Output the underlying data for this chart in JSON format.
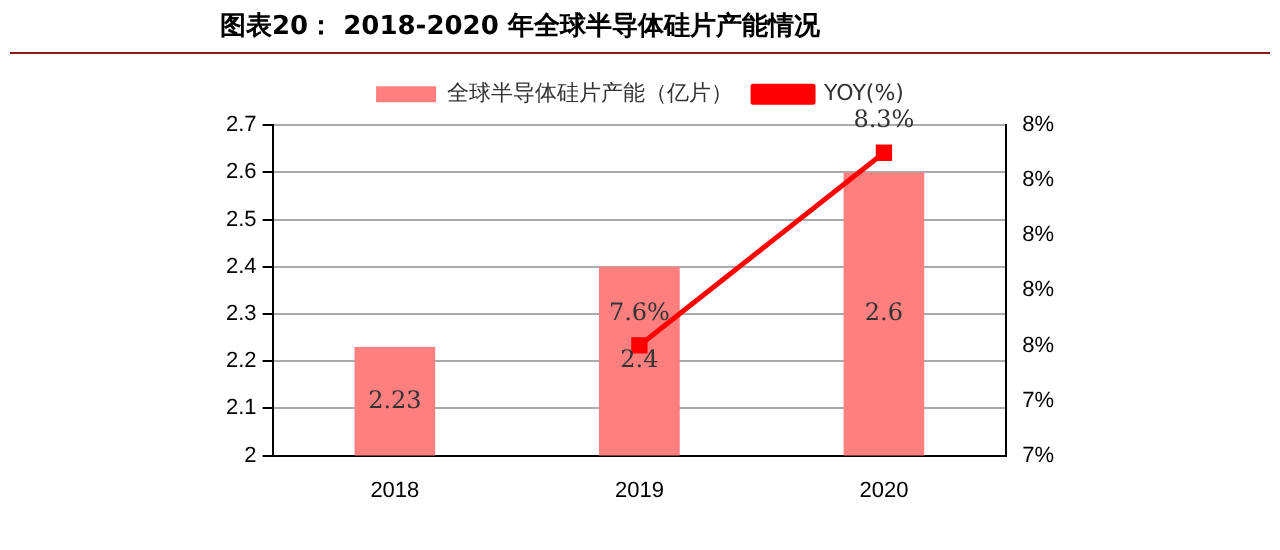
{
  "chart_data": {
    "type": "bar",
    "title": "图表20： 2018-2020 年全球半导体硅片产能情况",
    "categories": [
      "2018",
      "2019",
      "2020"
    ],
    "series": [
      {
        "name": "全球半导体硅片产能（亿片）",
        "color": "#ff7f7f",
        "values": [
          2.23,
          2.4,
          2.6
        ],
        "value_labels": [
          "2.23",
          "2.4",
          "2.6"
        ]
      },
      {
        "name": "YOY(%)",
        "type": "line",
        "axis": "y2",
        "color": "#ff0000",
        "values": [
          null,
          7.6,
          8.3
        ],
        "value_labels": [
          null,
          "7.6%",
          "8.3%"
        ],
        "marker": "square"
      }
    ],
    "ylim": [
      2,
      2.7
    ],
    "yticks": [
      2,
      2.1,
      2.2,
      2.3,
      2.4,
      2.5,
      2.6,
      2.7
    ],
    "y2lim": [
      7.2,
      8.4
    ],
    "y2ticks": [
      {
        "value": 7.2,
        "label": "7%"
      },
      {
        "value": 7.4,
        "label": "7%"
      },
      {
        "value": 7.6,
        "label": "8%"
      },
      {
        "value": 7.8,
        "label": "8%"
      },
      {
        "value": 8.0,
        "label": "8%"
      },
      {
        "value": 8.2,
        "label": "8%"
      },
      {
        "value": 8.4,
        "label": "8%"
      }
    ],
    "grid": "y",
    "legend": "top"
  }
}
